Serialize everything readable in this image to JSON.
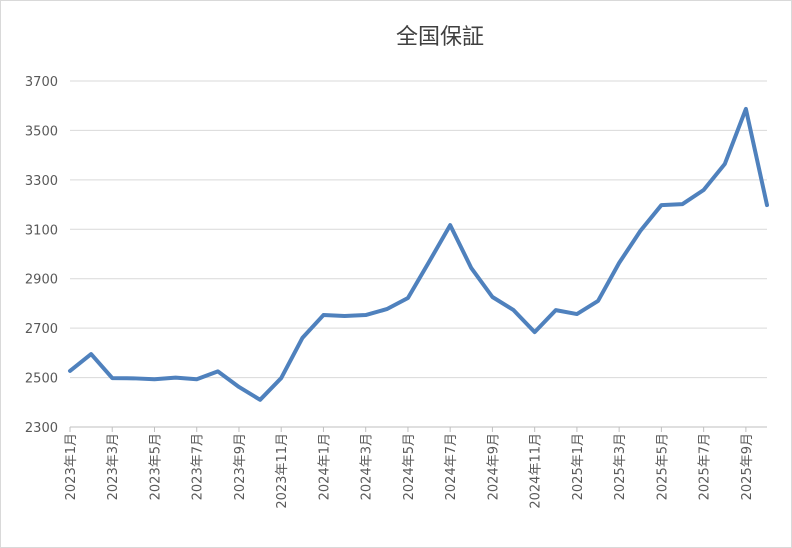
{
  "chart_data": {
    "type": "line",
    "title": "全国保証",
    "categories": [
      "2023年1月",
      null,
      "2023年3月",
      null,
      "2023年5月",
      null,
      "2023年7月",
      null,
      "2023年9月",
      null,
      "2023年11月",
      null,
      "2024年1月",
      null,
      "2024年3月",
      null,
      "2024年5月",
      null,
      "2024年7月",
      null,
      "2024年9月",
      null,
      "2024年11月",
      null,
      "2025年1月",
      null,
      "2025年3月",
      null,
      "2025年5月",
      null,
      "2025年7月",
      null,
      "2025年9月",
      null
    ],
    "series": [
      {
        "name": "全国保証",
        "color": "#4f81bd",
        "values": [
          2527,
          2595,
          2498,
          2497,
          2493,
          2500,
          2493,
          2525,
          2462,
          2410,
          2498,
          2660,
          2753,
          2749,
          2753,
          2777,
          2822,
          2968,
          3117,
          2943,
          2826,
          2773,
          2684,
          2773,
          2757,
          2810,
          2964,
          3093,
          3198,
          3202,
          3259,
          3364,
          3587,
          3198
        ]
      }
    ],
    "ylim": [
      2300,
      3700
    ],
    "yticks": [
      2300,
      2500,
      2700,
      2900,
      3100,
      3300,
      3500,
      3700
    ],
    "grid": true
  }
}
